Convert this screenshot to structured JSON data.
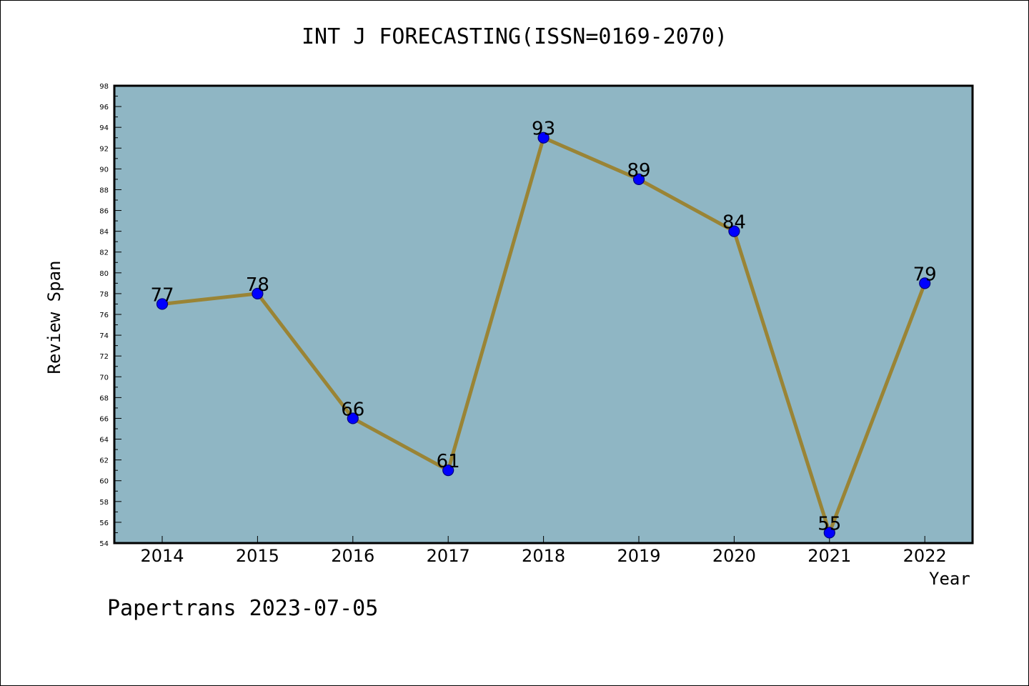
{
  "chart_data": {
    "type": "line",
    "title": "INT J FORECASTING(ISSN=0169-2070)",
    "xlabel": "Year",
    "ylabel": "Review Span",
    "categories": [
      "2014",
      "2015",
      "2016",
      "2017",
      "2018",
      "2019",
      "2020",
      "2021",
      "2022"
    ],
    "values": [
      77,
      78,
      66,
      61,
      93,
      89,
      84,
      55,
      79
    ],
    "data_labels": [
      "77",
      "78",
      "66",
      "61",
      "93",
      "89",
      "84",
      "55",
      "79"
    ],
    "ylim": [
      54,
      98
    ],
    "y_ticks": [
      "54",
      "56",
      "58",
      "60",
      "62",
      "64",
      "66",
      "68",
      "70",
      "72",
      "74",
      "76",
      "78",
      "80",
      "82",
      "84",
      "86",
      "88",
      "90",
      "92",
      "94",
      "96",
      "98"
    ],
    "grid": false,
    "colors": {
      "plot_background": "#8fb6c4",
      "line": "#9a8435",
      "marker": "#0000ff",
      "marker_edge": "#000080"
    }
  },
  "footer": "Papertrans 2023-07-05"
}
